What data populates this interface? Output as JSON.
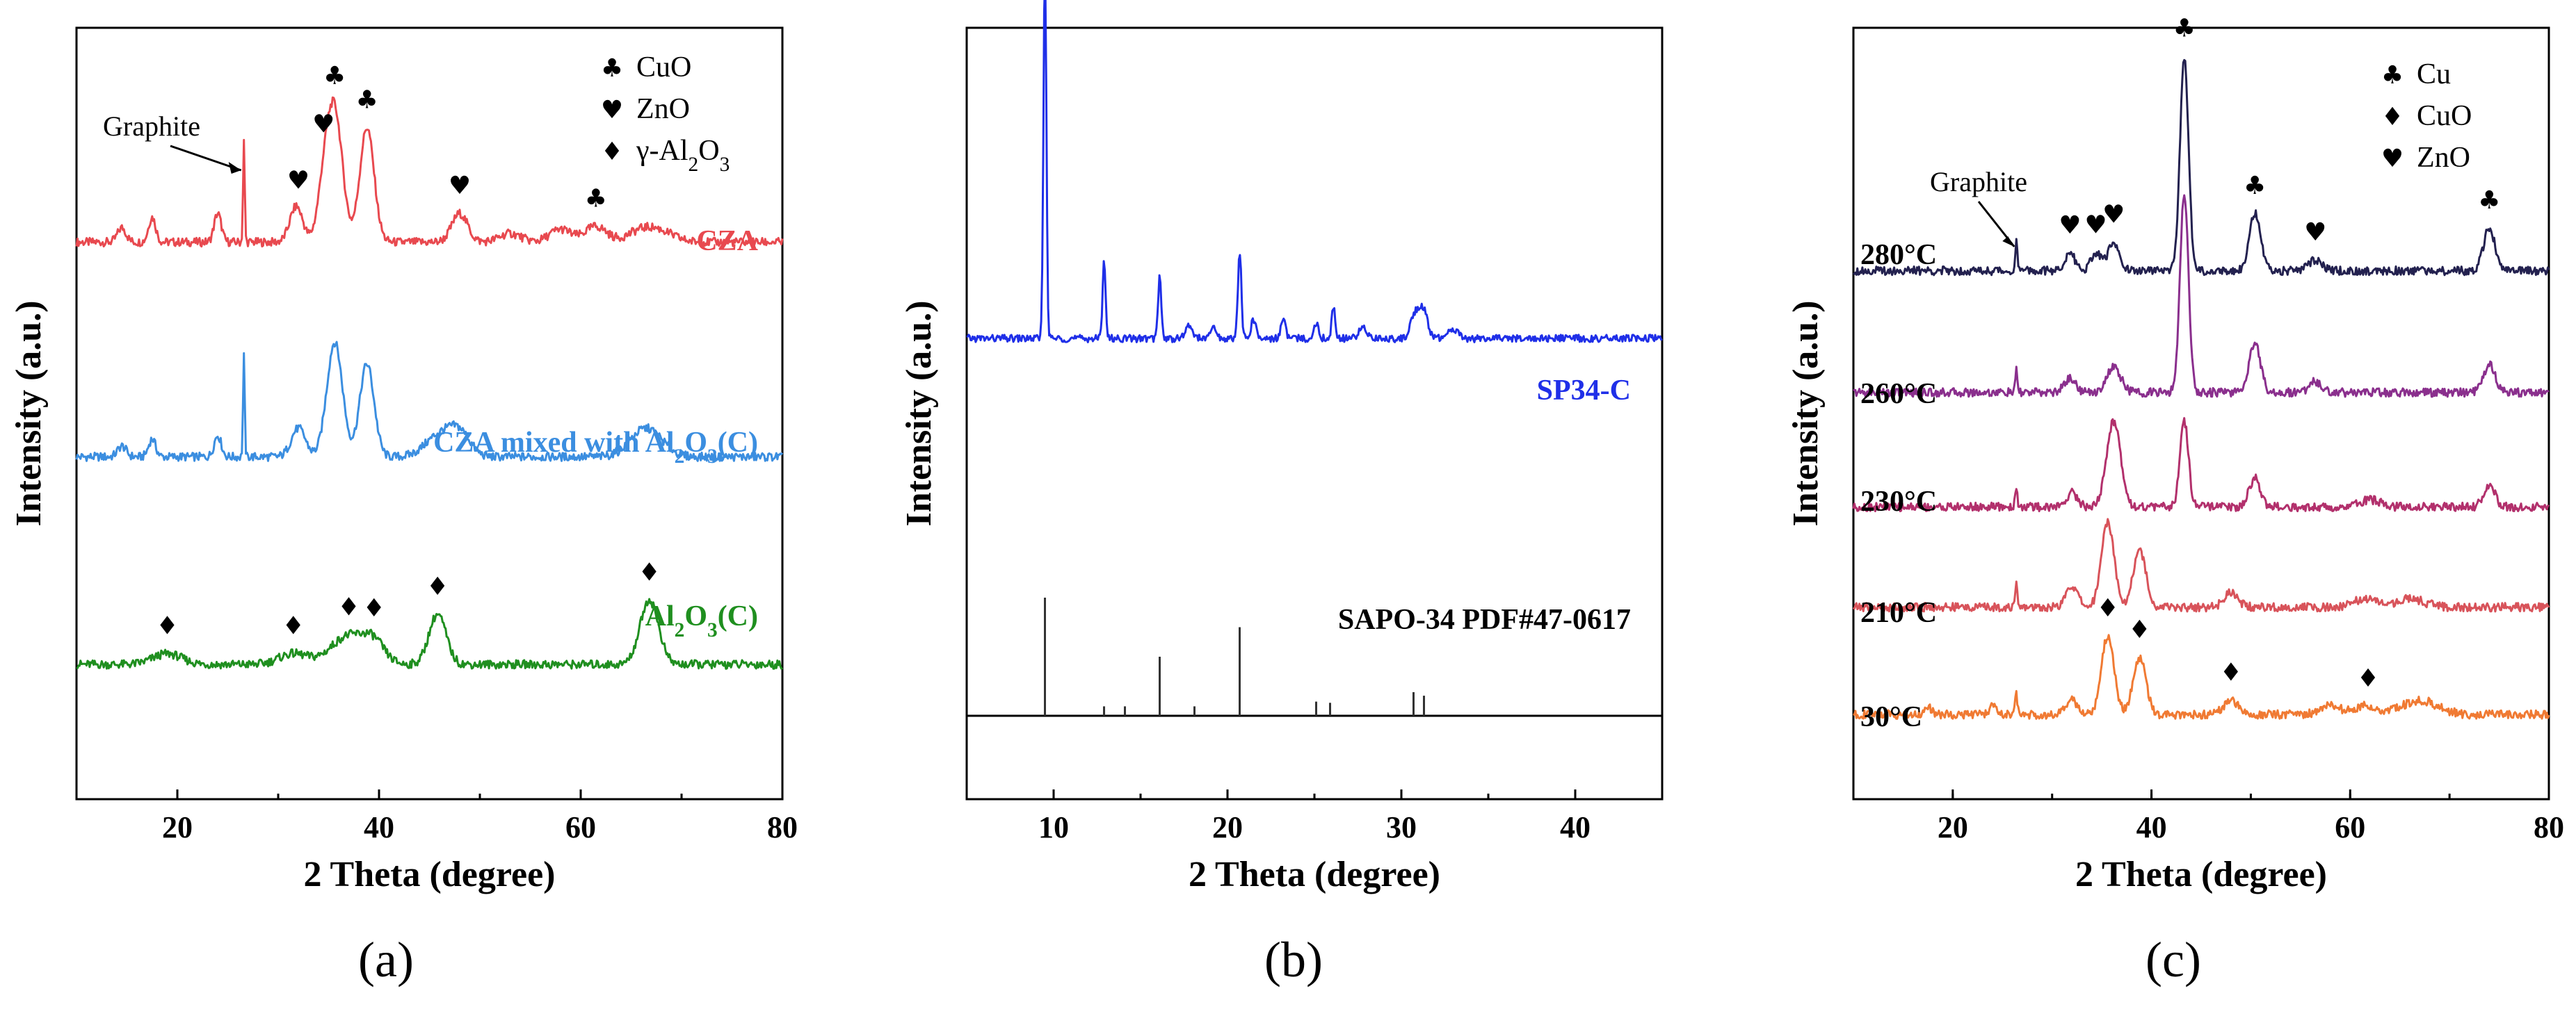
{
  "chart_data": [
    {
      "panel": "a",
      "type": "line",
      "caption": "(a)",
      "xlabel": "2 Theta (degree)",
      "ylabel": "Intensity (a.u.)",
      "xlim": [
        10,
        80
      ],
      "xticks": [
        20,
        40,
        60,
        80
      ],
      "legend": [
        {
          "symbol": "♣",
          "label": "CuO",
          "sub": ""
        },
        {
          "symbol": "♥",
          "label": "ZnO",
          "sub": ""
        },
        {
          "symbol": "♦",
          "label": "γ-Al",
          "sub": "2",
          "tail": "O",
          "sub2": "3"
        }
      ],
      "annotation": {
        "label": "Graphite",
        "x": 26.6
      },
      "series": [
        {
          "name": "CZA",
          "display": "CZA",
          "color": "#e8494f",
          "baseline": 0.72,
          "peaks": [
            [
              14.5,
              0.02,
              0.6
            ],
            [
              17.5,
              0.035,
              0.5
            ],
            [
              24,
              0.04,
              0.5
            ],
            [
              26.6,
              0.14,
              0.12
            ],
            [
              31.8,
              0.05,
              0.9
            ],
            [
              34.5,
              0.06,
              0.9
            ],
            [
              35.6,
              0.18,
              1.1
            ],
            [
              38.8,
              0.16,
              1.0
            ],
            [
              48,
              0.04,
              1.1
            ],
            [
              53,
              0.012,
              1.5
            ],
            [
              58,
              0.018,
              1.5
            ],
            [
              61.5,
              0.022,
              1.5
            ],
            [
              66,
              0.015,
              2.0
            ],
            [
              68,
              0.012,
              2.0
            ]
          ],
          "markers": [
            {
              "x": 32,
              "sym": "♥"
            },
            {
              "x": 34.5,
              "sym": "♥"
            },
            {
              "x": 35.6,
              "sym": "♣"
            },
            {
              "x": 38.8,
              "sym": "♣"
            },
            {
              "x": 48,
              "sym": "♥"
            },
            {
              "x": 61.5,
              "sym": "♣"
            }
          ]
        },
        {
          "name": "CZA mixed with Al2O3(C)",
          "display": "CZA mixed with Al",
          "sub": "2",
          "tail": "O",
          "sub2": "3",
          "tail2": "(C)",
          "color": "#3b8ee0",
          "baseline": 0.42,
          "peaks": [
            [
              14.5,
              0.015,
              0.6
            ],
            [
              17.5,
              0.025,
              0.5
            ],
            [
              24,
              0.03,
              0.5
            ],
            [
              26.6,
              0.14,
              0.12
            ],
            [
              32,
              0.04,
              1.0
            ],
            [
              35.6,
              0.16,
              1.1
            ],
            [
              38.8,
              0.13,
              1.0
            ],
            [
              46,
              0.03,
              2.0
            ],
            [
              48,
              0.03,
              1.5
            ],
            [
              66.5,
              0.04,
              2.2
            ]
          ],
          "markers": []
        },
        {
          "name": "Al2O3(C)",
          "display": "Al",
          "sub": "2",
          "tail": "O",
          "sub2": "3",
          "tail2": "(C)",
          "color": "#1f8f1f",
          "baseline": 0.13,
          "peaks": [
            [
              19,
              0.015,
              2.0
            ],
            [
              31.5,
              0.015,
              2.0
            ],
            [
              37,
              0.04,
              2.5
            ],
            [
              39.5,
              0.025,
              1.5
            ],
            [
              45.8,
              0.07,
              1.2
            ],
            [
              66.8,
              0.09,
              1.3
            ]
          ],
          "markers": [
            {
              "x": 19,
              "sym": "♦"
            },
            {
              "x": 31.5,
              "sym": "♦"
            },
            {
              "x": 37,
              "sym": "♦"
            },
            {
              "x": 39.5,
              "sym": "♦"
            },
            {
              "x": 45.8,
              "sym": "♦"
            },
            {
              "x": 66.8,
              "sym": "♦"
            }
          ]
        }
      ]
    },
    {
      "panel": "b",
      "type": "line",
      "caption": "(b)",
      "xlabel": "2 Theta (degree)",
      "ylabel": "Intensity (a.u.)",
      "xlim": [
        5,
        45
      ],
      "xticks": [
        10,
        20,
        30,
        40
      ],
      "series": [
        {
          "name": "SP34-C",
          "display": "SP34-C",
          "color": "#1f2fe8",
          "baseline": 0.61,
          "peaks": [
            [
              9.5,
              0.6,
              0.12
            ],
            [
              12.9,
              0.13,
              0.12
            ],
            [
              16.1,
              0.1,
              0.13
            ],
            [
              17.8,
              0.02,
              0.3
            ],
            [
              19.2,
              0.02,
              0.2
            ],
            [
              20.7,
              0.14,
              0.14
            ],
            [
              21.5,
              0.03,
              0.2
            ],
            [
              23.2,
              0.03,
              0.2
            ],
            [
              25.1,
              0.025,
              0.2
            ],
            [
              26.1,
              0.05,
              0.15
            ],
            [
              27.8,
              0.02,
              0.3
            ],
            [
              30.7,
              0.03,
              0.3
            ],
            [
              31.2,
              0.05,
              0.4
            ],
            [
              33,
              0.015,
              0.4
            ]
          ]
        }
      ],
      "reference": {
        "label": "SAPO-34  PDF#47-0617",
        "lines": [
          [
            9.5,
            1.0
          ],
          [
            12.9,
            0.08
          ],
          [
            14.1,
            0.08
          ],
          [
            16.1,
            0.5
          ],
          [
            18.1,
            0.08
          ],
          [
            20.7,
            0.75
          ],
          [
            25.1,
            0.12
          ],
          [
            25.9,
            0.11
          ],
          [
            30.7,
            0.2
          ],
          [
            31.3,
            0.17
          ]
        ]
      }
    },
    {
      "panel": "c",
      "type": "line",
      "caption": "(c)",
      "xlabel": "2 Theta (degree)",
      "ylabel": "Intensity (a.u.)",
      "xlim": [
        10,
        80
      ],
      "xticks": [
        20,
        40,
        60,
        80
      ],
      "legend": [
        {
          "symbol": "♣",
          "label": "Cu"
        },
        {
          "symbol": "♦",
          "label": "CuO"
        },
        {
          "symbol": "♥",
          "label": "ZnO"
        }
      ],
      "annotation": {
        "label": "Graphite",
        "x": 26.4
      },
      "series": [
        {
          "name": "280°C",
          "display": "280°C",
          "color": "#23214f",
          "baseline": 0.68,
          "peaks": [
            [
              26.4,
              0.04,
              0.15
            ],
            [
              31.8,
              0.025,
              0.7
            ],
            [
              34.4,
              0.025,
              0.7
            ],
            [
              36.2,
              0.04,
              0.8
            ],
            [
              43.3,
              0.3,
              0.6
            ],
            [
              50.4,
              0.08,
              0.8
            ],
            [
              56.5,
              0.015,
              0.9
            ],
            [
              74,
              0.06,
              0.8
            ]
          ],
          "markers": [
            {
              "x": 31.8,
              "sym": "♥"
            },
            {
              "x": 34.4,
              "sym": "♥"
            },
            {
              "x": 36.2,
              "sym": "♥"
            },
            {
              "x": 43.3,
              "sym": "♣"
            },
            {
              "x": 50.4,
              "sym": "♣"
            },
            {
              "x": 56.5,
              "sym": "♥"
            },
            {
              "x": 74,
              "sym": "♣"
            }
          ]
        },
        {
          "name": "260°C",
          "display": "260°C",
          "color": "#8a2f8d",
          "baseline": 0.51,
          "peaks": [
            [
              26.4,
              0.03,
              0.15
            ],
            [
              31.8,
              0.02,
              0.8
            ],
            [
              36.2,
              0.035,
              1.0
            ],
            [
              43.3,
              0.28,
              0.6
            ],
            [
              50.4,
              0.07,
              0.8
            ],
            [
              56.5,
              0.015,
              0.9
            ],
            [
              74,
              0.04,
              0.8
            ]
          ],
          "markers": []
        },
        {
          "name": "230°C",
          "display": "230°C",
          "color": "#b2306c",
          "baseline": 0.35,
          "peaks": [
            [
              26.4,
              0.03,
              0.15
            ],
            [
              32,
              0.02,
              0.8
            ],
            [
              36.2,
              0.12,
              1.0
            ],
            [
              43.3,
              0.12,
              0.6
            ],
            [
              50.4,
              0.04,
              0.8
            ],
            [
              62,
              0.01,
              1.5
            ],
            [
              74,
              0.03,
              0.8
            ]
          ],
          "markers": []
        },
        {
          "name": "210°C",
          "display": "210°C",
          "color": "#d8535a",
          "baseline": 0.21,
          "peaks": [
            [
              26.4,
              0.03,
              0.15
            ],
            [
              32,
              0.03,
              0.8
            ],
            [
              35.6,
              0.12,
              0.9
            ],
            [
              38.8,
              0.08,
              0.9
            ],
            [
              48,
              0.02,
              1.0
            ],
            [
              61.5,
              0.012,
              1.5
            ],
            [
              66,
              0.012,
              2.0
            ]
          ],
          "markers": []
        },
        {
          "name": "30°C",
          "display": "30°C",
          "color": "#f07a33",
          "baseline": 0.06,
          "peaks": [
            [
              17.5,
              0.01,
              0.5
            ],
            [
              24,
              0.012,
              0.5
            ],
            [
              26.4,
              0.03,
              0.15
            ],
            [
              32,
              0.02,
              0.8
            ],
            [
              35.6,
              0.11,
              0.9
            ],
            [
              38.8,
              0.08,
              0.9
            ],
            [
              48,
              0.02,
              1.0
            ],
            [
              58,
              0.012,
              1.5
            ],
            [
              61.5,
              0.012,
              1.5
            ],
            [
              67,
              0.02,
              2.5
            ]
          ],
          "markers": [
            {
              "x": 35.6,
              "sym": "♦"
            },
            {
              "x": 38.8,
              "sym": "♦"
            },
            {
              "x": 48,
              "sym": "♦"
            },
            {
              "x": 61.8,
              "sym": "♦"
            }
          ]
        }
      ]
    }
  ]
}
